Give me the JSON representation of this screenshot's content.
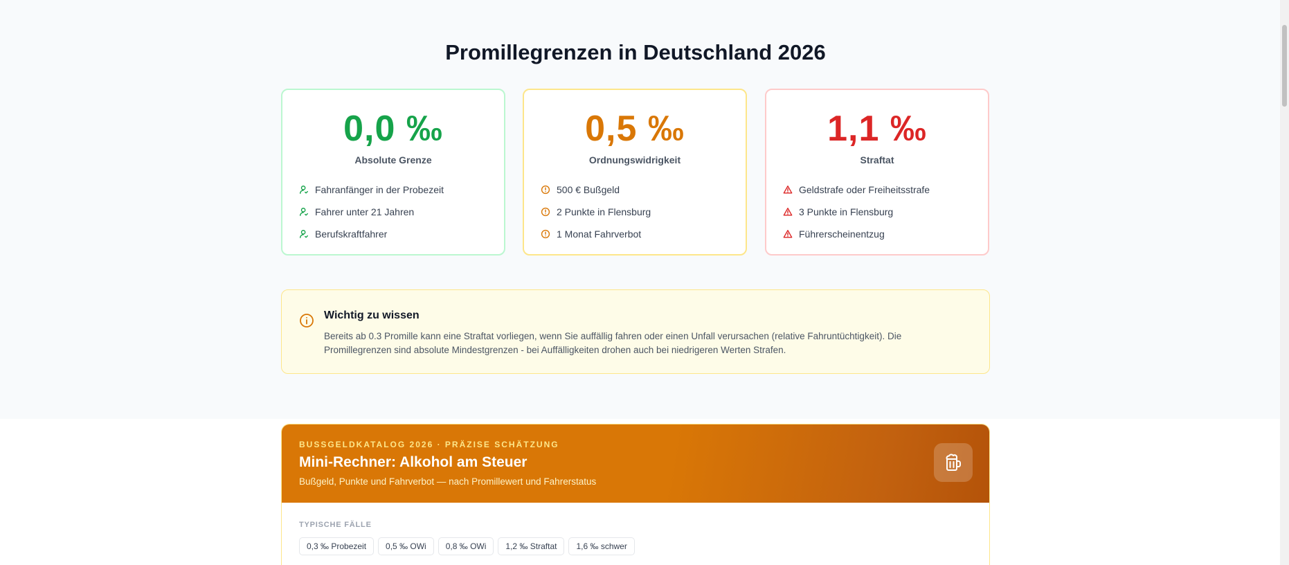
{
  "page": {
    "title": "Promillegrenzen in Deutschland 2026"
  },
  "cards": [
    {
      "value": "0,0 ‰",
      "label": "Absolute Grenze",
      "icon": "person-check-icon",
      "color": "#16a34a",
      "items": [
        "Fahranfänger in der Probezeit",
        "Fahrer unter 21 Jahren",
        "Berufskraftfahrer"
      ]
    },
    {
      "value": "0,5 ‰",
      "label": "Ordnungswidrigkeit",
      "icon": "alert-circle-icon",
      "color": "#d97706",
      "items": [
        "500 € Bußgeld",
        "2 Punkte in Flensburg",
        "1 Monat Fahrverbot"
      ]
    },
    {
      "value": "1,1 ‰",
      "label": "Straftat",
      "icon": "warning-triangle-icon",
      "color": "#dc2626",
      "items": [
        "Geldstrafe oder Freiheitsstrafe",
        "3 Punkte in Flensburg",
        "Führerscheinentzug"
      ]
    }
  ],
  "info": {
    "icon": "info-circle-icon",
    "title": "Wichtig zu wissen",
    "text": "Bereits ab 0.3 Promille kann eine Straftat vorliegen, wenn Sie auffällig fahren oder einen Unfall verursachen (relative Fahruntüchtigkeit). Die Promillegrenzen sind absolute Mindestgrenzen - bei Auffälligkeiten drohen auch bei niedrigeren Werten Strafen."
  },
  "calculator": {
    "eyebrow": "BUSSGELDKATALOG 2026 · PRÄZISE SCHÄTZUNG",
    "title": "Mini-Rechner: Alkohol am Steuer",
    "subtitle": "Bußgeld, Punkte und Fahrverbot — nach Promillewert und Fahrerstatus",
    "icon": "beer-mug-icon",
    "cases_label": "TYPISCHE FÄLLE",
    "cases": [
      "0,3 ‰ Probezeit",
      "0,5 ‰ OWi",
      "0,8 ‰ OWi",
      "1,2 ‰ Straftat",
      "1,6 ‰ schwer"
    ]
  }
}
